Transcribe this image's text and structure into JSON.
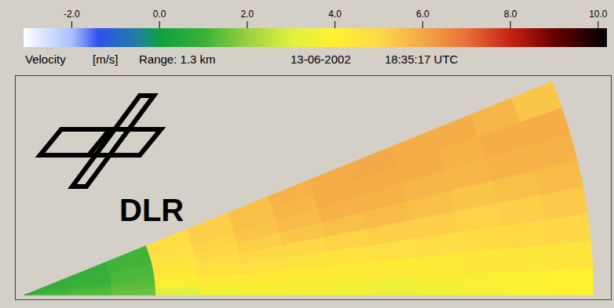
{
  "chart_data": {
    "type": "heatmap",
    "colorbar_label": "Velocity",
    "colorbar_unit": "[m/s]",
    "annotations": [
      "Range: 1.3 km",
      "13-06-2002",
      "18:35:17 UTC"
    ],
    "logo_text": "DLR",
    "colorbar_range": [
      -3.1,
      10.2
    ],
    "colorbar_ticks": [
      {
        "value": -2,
        "label": "-2.0"
      },
      {
        "value": 0,
        "label": "0.0"
      },
      {
        "value": 2,
        "label": "2.0"
      },
      {
        "value": 4,
        "label": "4.0"
      },
      {
        "value": 6,
        "label": "6.0"
      },
      {
        "value": 8,
        "label": "8.0"
      },
      {
        "value": 10,
        "label": "10.0"
      }
    ],
    "xlim": [
      -0.02,
      1.34
    ],
    "ylim": [
      -0.01,
      0.5
    ],
    "tick_labels": false,
    "range_bins": [
      0,
      0.1,
      0.2,
      0.3,
      0.4,
      0.5,
      0.6,
      0.7,
      0.8,
      0.9,
      1.0,
      1.1,
      1.2,
      1.3
    ],
    "elevation_bins": [
      0,
      2.75,
      5.5,
      8.25,
      11,
      13.75,
      16.5,
      19.25,
      22
    ],
    "cells": [
      [
        1.2,
        1.3,
        1.5,
        3.0,
        3.6,
        3.8,
        3.7,
        3.6,
        3.5,
        3.6,
        3.8,
        3.9,
        4.0
      ],
      [
        1.1,
        1.2,
        1.4,
        3.8,
        4.2,
        4.3,
        4.3,
        4.2,
        4.2,
        4.3,
        4.4,
        4.4,
        4.5
      ],
      [
        1.0,
        1.1,
        1.3,
        4.2,
        4.6,
        4.7,
        4.6,
        4.6,
        4.7,
        4.8,
        4.8,
        4.9,
        5.0
      ],
      [
        1.0,
        1.0,
        1.2,
        4.4,
        4.8,
        5.0,
        5.0,
        5.1,
        5.2,
        5.2,
        5.1,
        5.2,
        5.3
      ],
      [
        0.9,
        1.0,
        1.2,
        4.6,
        5.0,
        5.2,
        5.4,
        5.5,
        5.6,
        5.5,
        5.4,
        5.5,
        5.6
      ],
      [
        0.9,
        1.0,
        1.1,
        4.7,
        5.1,
        5.4,
        5.6,
        5.8,
        5.8,
        5.7,
        5.7,
        5.8,
        5.8
      ],
      [
        0.9,
        0.9,
        1.1,
        4.8,
        5.2,
        5.5,
        5.7,
        5.9,
        5.9,
        5.9,
        5.8,
        5.9,
        5.9
      ],
      [
        0.9,
        0.9,
        1.1,
        4.8,
        5.2,
        5.5,
        5.8,
        5.9,
        6.0,
        5.9,
        5.9,
        5.7,
        5.4
      ]
    ]
  }
}
